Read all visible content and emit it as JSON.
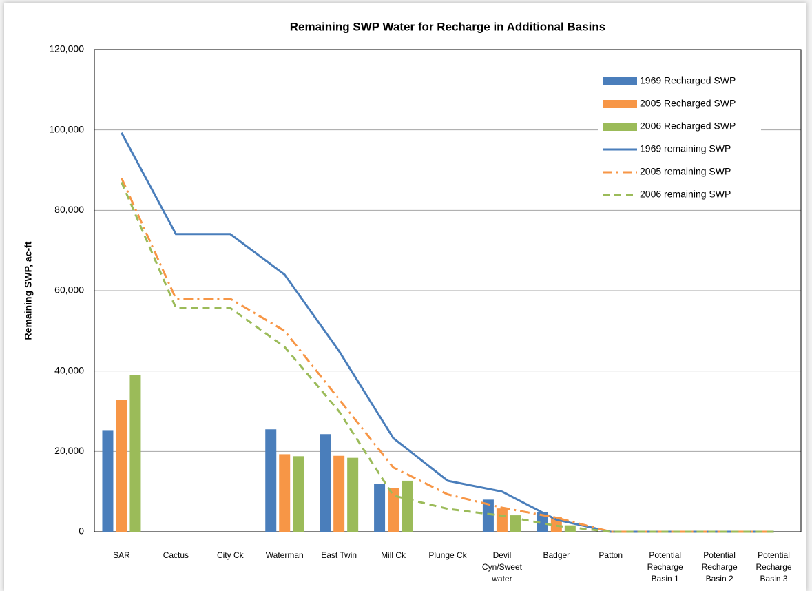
{
  "chart_data": {
    "type": "combo",
    "title": "Remaining SWP Water for Recharge in Additional Basins",
    "y_label": "Remaining SWP, ac-ft",
    "categories": [
      "SAR",
      "Cactus",
      "City Ck",
      "Waterman",
      "East Twin",
      "Mill Ck",
      "Plunge Ck",
      "Devil Cyn/Sweetwater",
      "Badger",
      "Patton",
      "Potential Recharge Basin 1",
      "Potential Recharge Basin 2",
      "Potential Recharge Basin 3"
    ],
    "series": [
      {
        "name": "1969 Recharged SWP",
        "type": "bar",
        "color": "#4a7ebb",
        "values": [
          25300,
          0,
          0,
          25500,
          24300,
          11900,
          0,
          8000,
          4900,
          0,
          0,
          0,
          0
        ]
      },
      {
        "name": "2005 Recharged SWP",
        "type": "bar",
        "color": "#f79646",
        "values": [
          32900,
          0,
          0,
          19300,
          18900,
          10800,
          0,
          5800,
          3700,
          0,
          0,
          0,
          0
        ]
      },
      {
        "name": "2006 Recharged SWP",
        "type": "bar",
        "color": "#9bbb59",
        "values": [
          39000,
          0,
          0,
          18800,
          18400,
          12700,
          0,
          4100,
          1600,
          0,
          0,
          0,
          0
        ]
      },
      {
        "name": "1969 remaining SWP",
        "type": "line",
        "style": "solid",
        "color": "#4a7ebb",
        "values": [
          99300,
          74100,
          74100,
          64000,
          45000,
          23300,
          12700,
          10000,
          3000,
          0,
          0,
          0,
          0
        ]
      },
      {
        "name": "2005 remaining SWP",
        "type": "line",
        "style": "dash-dot",
        "color": "#f79646",
        "values": [
          88000,
          58000,
          58000,
          50000,
          33000,
          16000,
          9300,
          6000,
          3500,
          0,
          0,
          0,
          0
        ]
      },
      {
        "name": "2006 remaining SWP",
        "type": "line",
        "style": "dashed",
        "color": "#9bbb59",
        "values": [
          87000,
          55700,
          55700,
          46000,
          30000,
          9000,
          5700,
          4000,
          1500,
          0,
          0,
          0,
          0
        ]
      }
    ],
    "ylim": [
      0,
      120000
    ],
    "yticks": [
      0,
      {
        "value": 20000,
        "label": "20,000"
      },
      {
        "value": 40000,
        "label": "40,000"
      },
      {
        "value": 60000,
        "label": "60,000"
      },
      {
        "value": 80000,
        "label": "80,000"
      },
      {
        "value": 100000,
        "label": "100,000"
      },
      {
        "value": 120000,
        "label": "120,000"
      }
    ],
    "grid": true,
    "legend": "top-right"
  }
}
